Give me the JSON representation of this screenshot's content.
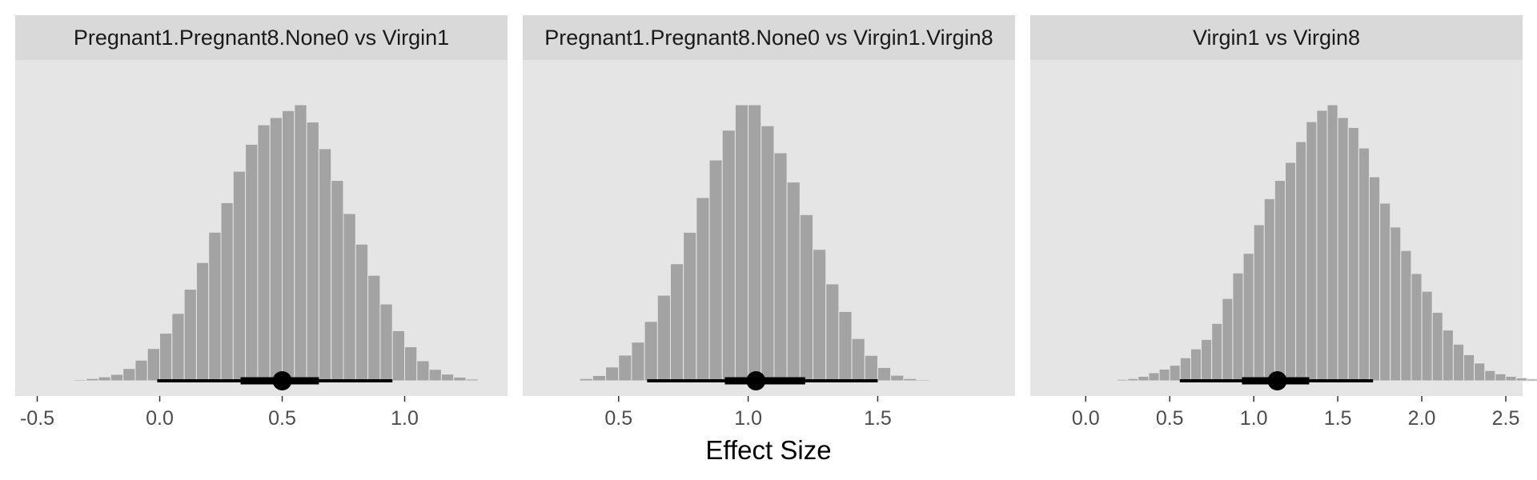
{
  "chart_data": {
    "type": "histogram-facets",
    "xlabel": "Effect Size",
    "colors": {
      "panel_bg": "#e5e5e5",
      "strip_bg": "#d9d9d9",
      "bar": "#a3a3a3",
      "bar_edge": "#e5e5e5",
      "interval": "#000000"
    },
    "grid": false,
    "facets": [
      {
        "title": "Pregnant1.Pregnant8.None0 vs Virgin1",
        "xlim": [
          -0.59,
          1.42
        ],
        "ticks": [
          -0.5,
          0.0,
          0.5,
          1.0
        ],
        "tick_labels": [
          "-0.5",
          "0.0",
          "0.5",
          "1.0"
        ],
        "bin_width": 0.05,
        "bin_start": -0.35,
        "counts": [
          0.4,
          0.8,
          1.4,
          2.3,
          4.4,
          7.4,
          11.6,
          17.1,
          24.2,
          32.9,
          42.5,
          53.4,
          64.0,
          75.3,
          85.0,
          92.0,
          94.6,
          97.1,
          99.2,
          93.0,
          83.4,
          72.0,
          60.1,
          49.1,
          37.9,
          27.6,
          18.0,
          12.2,
          7.2,
          4.1,
          2.4,
          1.3,
          0.6,
          0.2
        ],
        "point": 0.5,
        "interval_inner": [
          0.33,
          0.65
        ],
        "interval_outer": [
          -0.01,
          0.95
        ]
      },
      {
        "title": "Pregnant1.Pregnant8.None0 vs Virgin1.Virgin8",
        "xlim": [
          0.13,
          2.03
        ],
        "ticks": [
          0.5,
          1.0,
          1.5
        ],
        "tick_labels": [
          "0.5",
          "1.0",
          "1.5"
        ],
        "bin_width": 0.05,
        "bin_start": 0.3,
        "counts": [
          0.2,
          0.8,
          1.9,
          5.0,
          9.3,
          14.0,
          21.5,
          31.0,
          42.4,
          53.8,
          66.4,
          80.0,
          90.8,
          100.0,
          100.0,
          92.4,
          82.6,
          72.0,
          60.2,
          47.6,
          35.1,
          25.1,
          15.3,
          9.2,
          4.8,
          2.0,
          0.8,
          0.4,
          0.2,
          0.1,
          0.2
        ],
        "point": 1.03,
        "interval_inner": [
          0.91,
          1.22
        ],
        "interval_outer": [
          0.61,
          1.5
        ]
      },
      {
        "title": "Virgin1 vs Virgin8",
        "xlim": [
          -0.33,
          2.6
        ],
        "ticks": [
          0.0,
          0.5,
          1.0,
          1.5,
          2.0,
          2.5
        ],
        "tick_labels": [
          "0.0",
          "0.5",
          "1.0",
          "1.5",
          "2.0",
          "2.5"
        ],
        "bin_width": 0.0625,
        "bin_start": 0.125,
        "counts": [
          0.2,
          0.5,
          0.8,
          1.6,
          2.9,
          4.2,
          5.6,
          8.3,
          11.5,
          14.9,
          20.7,
          29.7,
          38.9,
          46.0,
          56.3,
          65.7,
          72.3,
          78.8,
          86.3,
          93.5,
          97.6,
          99.6,
          95.0,
          91.4,
          84.0,
          73.6,
          64.1,
          55.5,
          47.0,
          38.7,
          32.3,
          24.7,
          18.3,
          13.2,
          9.4,
          6.4,
          3.7,
          2.5,
          1.6,
          1.0,
          0.6,
          0.3
        ],
        "point": 1.14,
        "interval_inner": [
          0.93,
          1.33
        ],
        "interval_outer": [
          0.56,
          1.71
        ]
      }
    ]
  }
}
